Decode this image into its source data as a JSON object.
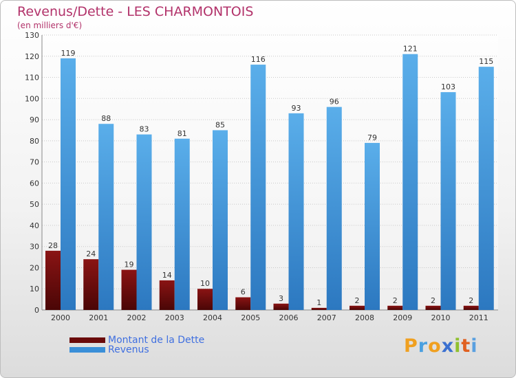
{
  "header": {
    "title": "Revenus/Dette - LES CHARMONTOIS",
    "subtitle": "(en milliers d'€)"
  },
  "chart_data": {
    "type": "bar",
    "title": "Revenus/Dette - LES CHARMONTOIS",
    "ylabel": "(en milliers d'€)",
    "xlabel": "",
    "ylim": [
      0,
      130
    ],
    "yticks": [
      0,
      10,
      20,
      30,
      40,
      50,
      60,
      70,
      80,
      90,
      100,
      110,
      120,
      130
    ],
    "grid": true,
    "categories": [
      "2000",
      "2001",
      "2002",
      "2003",
      "2004",
      "2005",
      "2006",
      "2007",
      "2008",
      "2009",
      "2010",
      "2011"
    ],
    "series": [
      {
        "name": "Montant de la Dette",
        "color": "#7a1010",
        "values": [
          28,
          24,
          19,
          14,
          10,
          6,
          3,
          1,
          2,
          2,
          2,
          2
        ]
      },
      {
        "name": "Revenus",
        "color": "#3a8fd8",
        "values": [
          119,
          88,
          83,
          81,
          85,
          116,
          93,
          96,
          79,
          121,
          103,
          115
        ]
      }
    ]
  },
  "legend": {
    "items": [
      {
        "label": "Montant de la Dette",
        "color": "#7a1010"
      },
      {
        "label": "Revenus",
        "color": "#3a8fd8"
      }
    ]
  },
  "logo": {
    "text": "Proxiti",
    "letter_colors": [
      "#f0a020",
      "#4aa0e0",
      "#f0a020",
      "#3a70d0",
      "#90c030",
      "#e06020",
      "#5aa0e0"
    ]
  }
}
